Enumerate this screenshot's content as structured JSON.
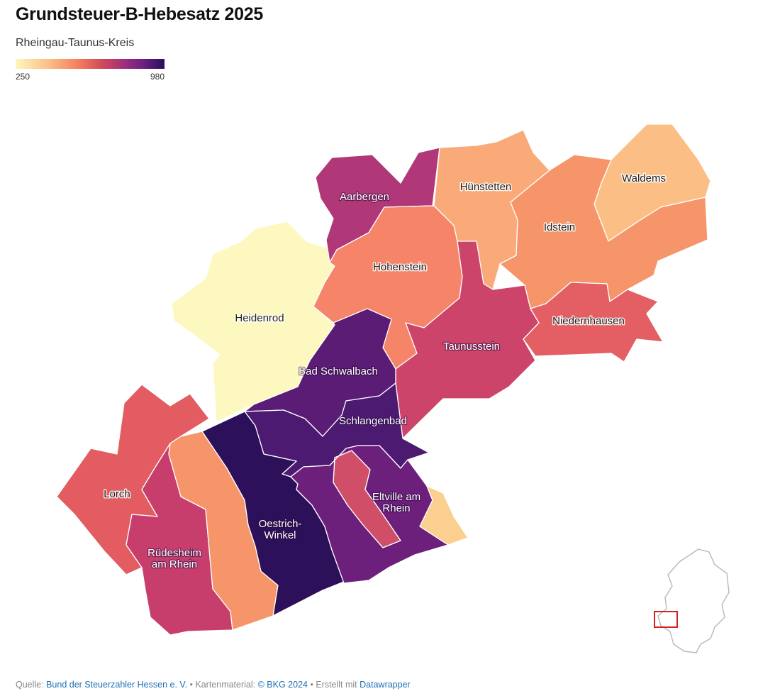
{
  "title": "Grundsteuer-B-Hebesatz 2025",
  "subtitle": "Rheingau-Taunus-Kreis",
  "legend": {
    "min": "250",
    "max": "980"
  },
  "regions": [
    {
      "id": "heidenrod",
      "label": [
        "Heidenrod"
      ],
      "color": "#fcf8bf",
      "text": "dark"
    },
    {
      "id": "aarbergen",
      "label": [
        "Aarbergen"
      ],
      "color": "#b03778",
      "text": "light"
    },
    {
      "id": "huenstetten",
      "label": [
        "Hünstetten"
      ],
      "color": "#f9aa78",
      "text": "dark"
    },
    {
      "id": "waldems",
      "label": [
        "Waldems"
      ],
      "color": "#fbbf85",
      "text": "dark"
    },
    {
      "id": "idstein",
      "label": [
        "Idstein"
      ],
      "color": "#f7956a",
      "text": "dark"
    },
    {
      "id": "hohenstein",
      "label": [
        "Hohenstein"
      ],
      "color": "#f58469",
      "text": "dark"
    },
    {
      "id": "taunusstein",
      "label": [
        "Taunusstein"
      ],
      "color": "#cc4469",
      "text": "light"
    },
    {
      "id": "niedernhausen",
      "label": [
        "Niedernhausen"
      ],
      "color": "#e35f63",
      "text": "dark"
    },
    {
      "id": "bad-schwalbach",
      "label": [
        "Bad Schwalbach"
      ],
      "color": "#5a1c74",
      "text": "light"
    },
    {
      "id": "schlangenbad",
      "label": [
        "Schlangenbad"
      ],
      "color": "#4d1a72",
      "text": "light"
    },
    {
      "id": "lorch",
      "label": [
        "Lorch"
      ],
      "color": "#e35c62",
      "text": "dark"
    },
    {
      "id": "ruedesheim",
      "label": [
        "Rüdesheim",
        "am Rhein"
      ],
      "color": "#c73e6d",
      "text": "light"
    },
    {
      "id": "geisenheim",
      "label": [],
      "color": "#f7956a",
      "text": "dark"
    },
    {
      "id": "oestrich-winkel",
      "label": [
        "Oestrich-",
        "Winkel"
      ],
      "color": "#2c1059",
      "text": "light"
    },
    {
      "id": "kiedrich",
      "label": [],
      "color": "#d04e68",
      "text": "dark"
    },
    {
      "id": "eltville",
      "label": [
        "Eltville am",
        "Rhein"
      ],
      "color": "#6d1f7c",
      "text": "light"
    },
    {
      "id": "walluf",
      "label": [],
      "color": "#fbcf8f",
      "text": "dark"
    }
  ],
  "footer": {
    "source_prefix": "Quelle: ",
    "source_link": "Bund der Steuerzahler Hessen e. V.",
    "map_prefix": " • Kartenmaterial: ",
    "map_link": "© BKG 2024",
    "made_prefix": " • Erstellt mit ",
    "made_link": "Datawrapper"
  }
}
